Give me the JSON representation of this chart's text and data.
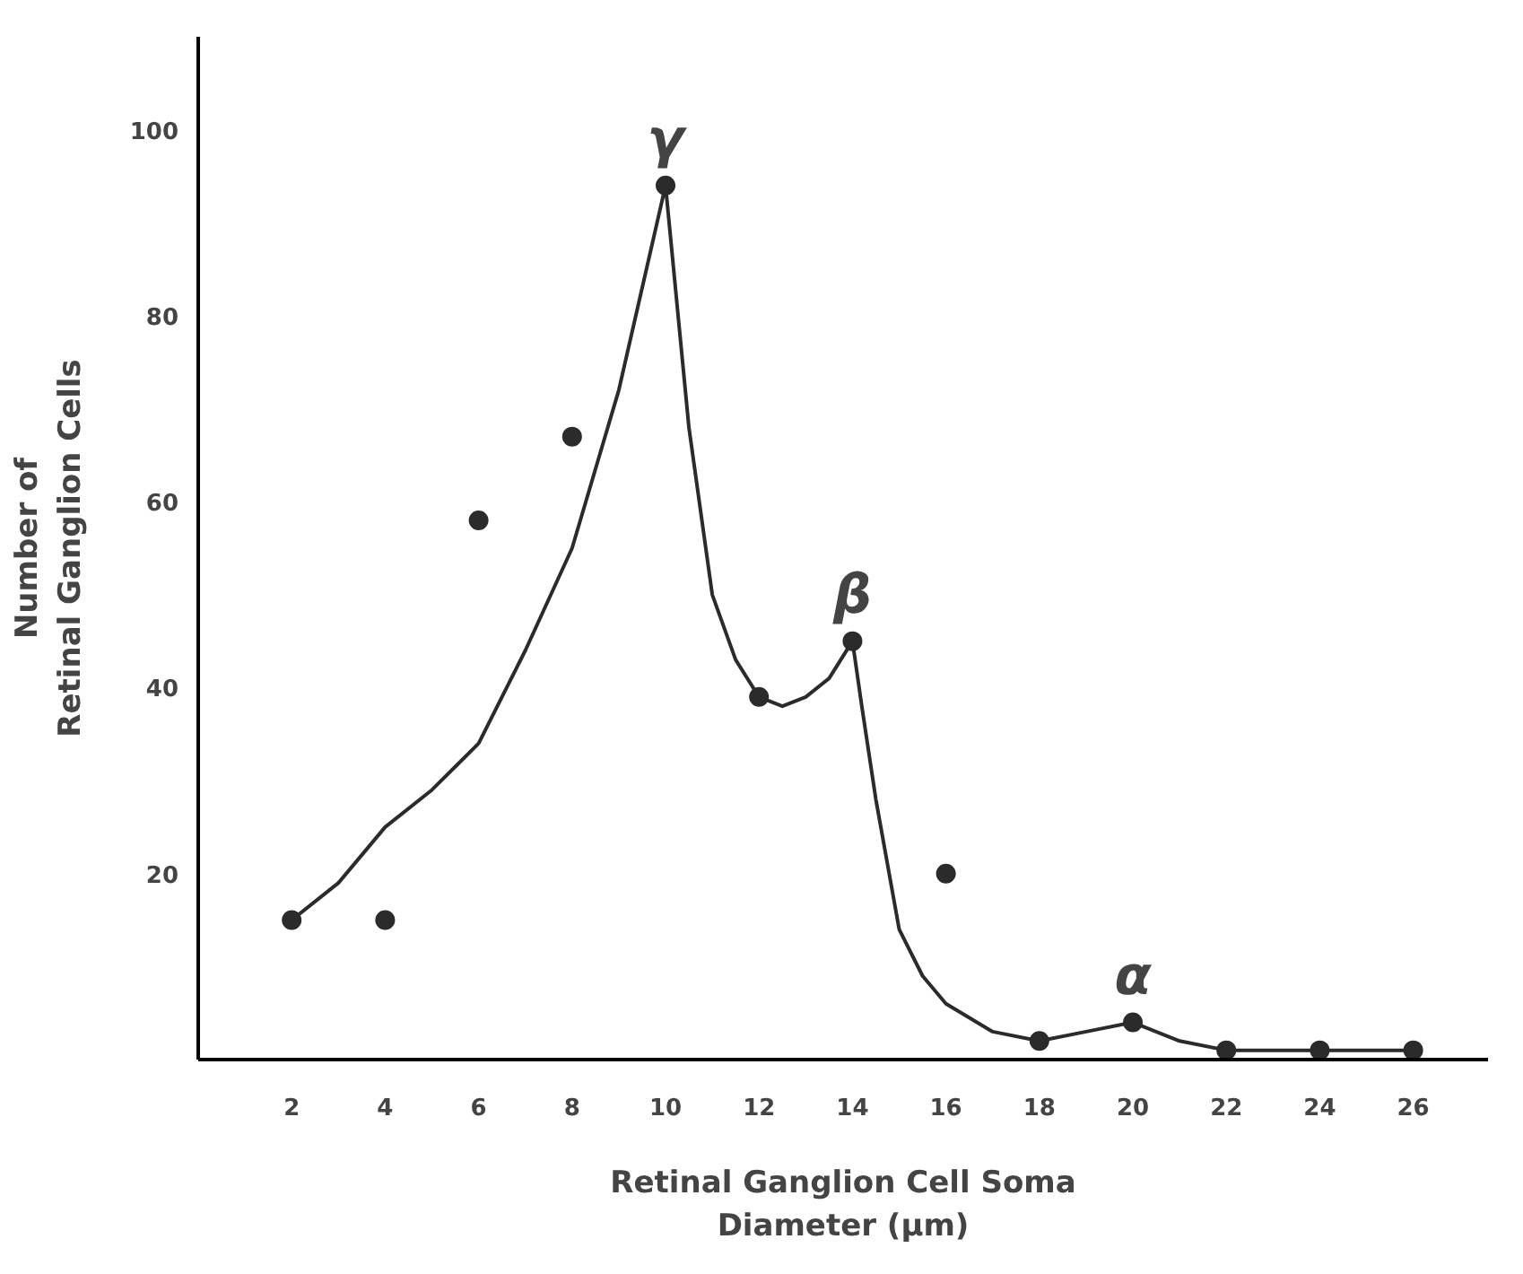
{
  "chart_data": {
    "type": "scatter",
    "xlabel": "Retinal Ganglion Cell Soma\nDiameter (μm)",
    "ylabel": "Number of\nRetinal Ganglion Cells",
    "series": [
      {
        "marker": "circle",
        "color": "#2b2b2b",
        "x": [
          2,
          4,
          6,
          8,
          10,
          12,
          14,
          16,
          18,
          20,
          22,
          24,
          26
        ],
        "values": [
          15,
          15,
          58,
          67,
          94,
          39,
          45,
          20,
          2,
          4,
          1,
          1,
          1
        ]
      },
      {
        "type": "line",
        "color": "#2b2b2b",
        "x": [
          2,
          3,
          4,
          5,
          6,
          7,
          8,
          9,
          10,
          10.5,
          11,
          11.5,
          12,
          12.5,
          13,
          13.5,
          14,
          14.2,
          14.5,
          15,
          15.5,
          16,
          17,
          18,
          19,
          20,
          21,
          22,
          24,
          26
        ],
        "values": [
          15,
          19,
          25,
          29,
          34,
          44,
          55,
          72,
          94,
          68,
          50,
          43,
          39,
          38,
          39,
          41,
          45,
          38,
          28,
          14,
          9,
          6,
          3,
          2,
          3,
          4,
          2,
          1,
          1,
          1
        ]
      }
    ],
    "annotations": [
      {
        "text": "γ",
        "x": 10,
        "y": 94
      },
      {
        "text": "β",
        "x": 14,
        "y": 45
      },
      {
        "text": "α",
        "x": 20,
        "y": 4
      }
    ],
    "xlim": [
      0,
      27.6
    ],
    "ylim": [
      0,
      110
    ],
    "xticks": [
      2,
      4,
      6,
      8,
      10,
      12,
      14,
      16,
      18,
      20,
      22,
      24,
      26
    ],
    "yticks": [
      20,
      40,
      60,
      80,
      100
    ],
    "grid": false
  }
}
